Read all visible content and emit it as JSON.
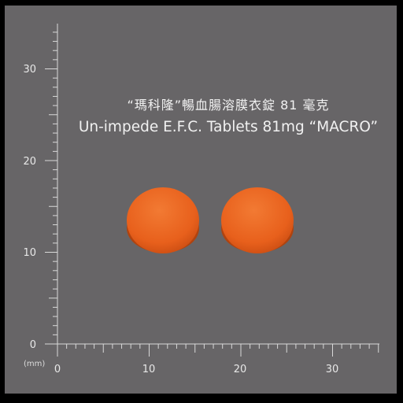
{
  "caption": {
    "chinese": "“瑪科隆”暢血腸溶膜衣錠 81 毫克",
    "english": "Un-impede E.F.C. Tablets 81mg “MACRO”"
  },
  "ruler": {
    "unit": "(mm)",
    "y_labels": [
      "30",
      "20",
      "10",
      "0"
    ],
    "x_labels": [
      "0",
      "10",
      "20",
      "30"
    ],
    "color": "#d9d9d9"
  },
  "background": {
    "panel": "#676567",
    "border": "#000000"
  },
  "tablets": [
    {
      "name": "tablet-left",
      "color": "#e8601c"
    },
    {
      "name": "tablet-right",
      "color": "#e8601c"
    }
  ]
}
